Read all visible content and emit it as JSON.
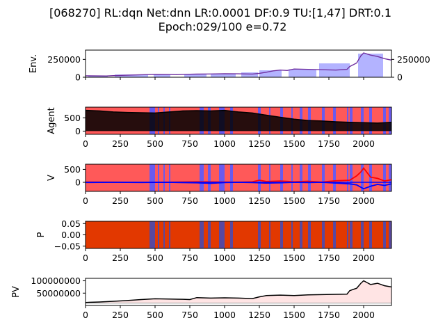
{
  "title_line1": "[068270] RL:dqn Net:dnn LR:0.0001 DF:0.9 TU:[1,47] DRT:0.1",
  "title_line2": "Epoch:029/100 e=0.72",
  "chart_data": [
    {
      "name": "env",
      "type": "line",
      "ylabel": "Env.",
      "xlim": [
        0,
        2200
      ],
      "ylim": [
        0,
        380000
      ],
      "yticks_left": [
        "0",
        "250000"
      ],
      "yticks_right": [
        "0",
        "250000"
      ],
      "series": [
        {
          "name": "price",
          "color": "#000000",
          "x": [
            0,
            150,
            200,
            400,
            500,
            600,
            650,
            750,
            800,
            900,
            1000,
            1100,
            1200,
            1250,
            1300,
            1350,
            1400,
            1450,
            1500,
            1600,
            1700,
            1800,
            1880,
            1900,
            1950,
            1980,
            2000,
            2050,
            2100,
            2150,
            2200
          ],
          "y": [
            20000,
            18000,
            22000,
            35000,
            40000,
            38000,
            36000,
            42000,
            44000,
            46000,
            50000,
            48000,
            45000,
            55000,
            70000,
            90000,
            100000,
            95000,
            115000,
            110000,
            105000,
            100000,
            110000,
            150000,
            200000,
            300000,
            340000,
            310000,
            290000,
            260000,
            240000
          ]
        }
      ],
      "fill_spans": [
        [
          20,
          160
        ],
        [
          210,
          450
        ],
        [
          490,
          610
        ],
        [
          710,
          870
        ],
        [
          900,
          1080
        ],
        [
          1120,
          1240
        ],
        [
          1250,
          1410
        ],
        [
          1460,
          1660
        ],
        [
          1680,
          1900
        ],
        [
          1960,
          2140
        ]
      ],
      "fill_color": "#b3b3ff"
    },
    {
      "name": "agent",
      "type": "area",
      "ylabel": "Agent",
      "xlim": [
        0,
        2200
      ],
      "ylim": [
        -120,
        900
      ],
      "yticks": [
        "0",
        "500"
      ],
      "xticks": [
        "0",
        "250",
        "500",
        "750",
        "1000",
        "1250",
        "1500",
        "1750",
        "2000"
      ],
      "series": [
        {
          "name": "holdings",
          "color": "#000000",
          "x": [
            0,
            100,
            200,
            300,
            400,
            500,
            600,
            700,
            800,
            900,
            1000,
            1100,
            1200,
            1300,
            1400,
            1500,
            1600,
            1700,
            1800,
            1900,
            2000,
            2100,
            2200
          ],
          "y": [
            780,
            760,
            720,
            700,
            690,
            680,
            720,
            760,
            770,
            760,
            780,
            720,
            680,
            600,
            520,
            450,
            400,
            380,
            350,
            330,
            320,
            300,
            330
          ]
        }
      ]
    },
    {
      "name": "value",
      "type": "line",
      "ylabel": "V",
      "xlim": [
        0,
        2200
      ],
      "ylim": [
        -350,
        700
      ],
      "yticks": [
        "0",
        "500"
      ],
      "xticks": [
        "0",
        "250",
        "500",
        "750",
        "1000",
        "1250",
        "1500",
        "1750",
        "2000"
      ],
      "series": [
        {
          "name": "v_buy",
          "color": "#ff0000",
          "x": [
            0,
            200,
            400,
            600,
            800,
            900,
            1000,
            1100,
            1200,
            1250,
            1300,
            1400,
            1500,
            1600,
            1700,
            1800,
            1900,
            1950,
            1980,
            2000,
            2050,
            2100,
            2150,
            2200
          ],
          "y": [
            10,
            5,
            0,
            5,
            20,
            15,
            10,
            5,
            20,
            80,
            30,
            50,
            20,
            40,
            10,
            60,
            80,
            250,
            400,
            550,
            200,
            150,
            50,
            100
          ]
        },
        {
          "name": "v_sell",
          "color": "#0000ff",
          "x": [
            0,
            200,
            400,
            600,
            800,
            900,
            1000,
            1100,
            1200,
            1300,
            1400,
            1500,
            1600,
            1700,
            1800,
            1900,
            1950,
            2000,
            2050,
            2100,
            2150,
            2200
          ],
          "y": [
            -5,
            0,
            -5,
            0,
            -20,
            -40,
            -10,
            0,
            -10,
            -30,
            -20,
            0,
            -10,
            0,
            -30,
            -60,
            -100,
            -250,
            -150,
            -80,
            -120,
            -60
          ]
        }
      ]
    },
    {
      "name": "policy",
      "type": "area",
      "ylabel": "P",
      "xlim": [
        0,
        2200
      ],
      "ylim": [
        -0.06,
        0.06
      ],
      "yticks": [
        "0.05",
        "0.00",
        "−0.05"
      ],
      "xticks": [
        "0",
        "250",
        "500",
        "750",
        "1000",
        "1250",
        "1500",
        "1750",
        "2000"
      ],
      "background_color": "#e23800"
    },
    {
      "name": "pv",
      "type": "line",
      "ylabel": "PV",
      "xlim": [
        0,
        2200
      ],
      "ylim": [
        0,
        110000000
      ],
      "yticks": [
        "50000000",
        "100000000"
      ],
      "xticks": [
        "0",
        "250",
        "500",
        "750",
        "1000",
        "1250",
        "1500",
        "1750",
        "2000"
      ],
      "series": [
        {
          "name": "portfolio_value",
          "color": "#000000",
          "x": [
            0,
            100,
            200,
            300,
            400,
            500,
            600,
            700,
            750,
            800,
            900,
            1000,
            1100,
            1200,
            1250,
            1300,
            1400,
            1500,
            1600,
            1700,
            1800,
            1880,
            1900,
            1950,
            1980,
            2000,
            2050,
            2100,
            2150,
            2200
          ],
          "y": [
            12000000,
            14000000,
            17000000,
            20000000,
            24000000,
            27000000,
            26000000,
            25000000,
            24000000,
            32000000,
            30000000,
            31000000,
            30000000,
            28000000,
            35000000,
            40000000,
            42000000,
            40000000,
            43000000,
            44000000,
            45000000,
            46000000,
            60000000,
            70000000,
            90000000,
            100000000,
            85000000,
            90000000,
            80000000,
            75000000
          ]
        }
      ],
      "baseline": 10000000,
      "fill_color": "#ffe4e4"
    }
  ],
  "stripe_colors": {
    "buy": "#ff5050",
    "sell": "#5a5aff",
    "hold_policy": "#e23800",
    "sell_policy": "#4a4ab0"
  },
  "action_spans_sell": [
    [
      460,
      500
    ],
    [
      520,
      530
    ],
    [
      560,
      570
    ],
    [
      600,
      610
    ],
    [
      820,
      850
    ],
    [
      880,
      900
    ],
    [
      960,
      1000
    ],
    [
      1040,
      1060
    ],
    [
      1240,
      1260
    ],
    [
      1320,
      1330
    ],
    [
      1400,
      1420
    ],
    [
      1480,
      1490
    ],
    [
      1540,
      1560
    ],
    [
      1600,
      1620
    ],
    [
      1700,
      1720
    ],
    [
      1780,
      1800
    ],
    [
      1880,
      1890
    ],
    [
      1900,
      1920
    ],
    [
      1980,
      2000
    ],
    [
      2040,
      2060
    ],
    [
      2140,
      2160
    ],
    [
      2180,
      2200
    ]
  ]
}
